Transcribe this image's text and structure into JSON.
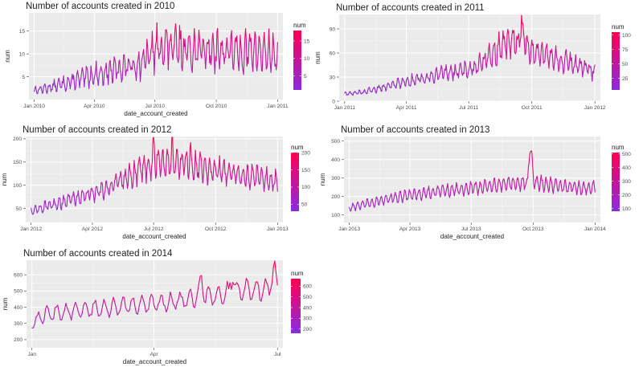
{
  "chart_data": [
    {
      "type": "line",
      "title": "Number of accounts created in 2010",
      "xlabel": "date_account_created",
      "ylabel": "num",
      "legend_title": "num",
      "x_ticks": [
        "Jan 2010",
        "Apr 2010",
        "Jul 2010",
        "Oct 2010",
        "Jan 2011"
      ],
      "x_tick_pos": [
        0,
        90,
        181,
        273,
        365
      ],
      "x_domain": [
        -8,
        373
      ],
      "y_ticks": [
        5,
        10,
        15
      ],
      "ylim": [
        0,
        19
      ],
      "legend_ticks": [
        5,
        10,
        15
      ],
      "color_range": [
        1,
        18
      ],
      "grid": true,
      "legend_position": "right",
      "gradient_colors": [
        "#8a2be2",
        "#ff0050"
      ],
      "series": [
        {
          "x": [
            0,
            15,
            30,
            45,
            60,
            75,
            90,
            105,
            120,
            135,
            150,
            165,
            180,
            195,
            210,
            225,
            240,
            255,
            270,
            285,
            300,
            315,
            330,
            345,
            360
          ],
          "y": [
            2.0,
            2.4,
            2.9,
            3.5,
            4.1,
            4.8,
            5.4,
            5.9,
            6.4,
            7.1,
            7.5,
            8.4,
            10.8,
            11.8,
            11.2,
            11.1,
            11.0,
            10.8,
            10.9,
            10.6,
            10.5,
            10.4,
            10.6,
            10.2,
            10.0
          ]
        }
      ]
    },
    {
      "type": "line",
      "title": "Number of accounts created in 2011",
      "xlabel": "",
      "ylabel": "num",
      "legend_title": "num",
      "x_ticks": [
        "Jan 2011",
        "Apr 2011",
        "Jul 2011",
        "Oct 2011",
        "Jan 2012"
      ],
      "x_tick_pos": [
        0,
        90,
        181,
        273,
        365
      ],
      "x_domain": [
        -8,
        373
      ],
      "y_ticks": [
        0,
        30,
        60,
        90
      ],
      "ylim": [
        0,
        108
      ],
      "legend_ticks": [
        25,
        50,
        75,
        100
      ],
      "color_range": [
        5,
        105
      ],
      "grid": true,
      "legend_position": "right",
      "gradient_colors": [
        "#8a2be2",
        "#ff0050"
      ],
      "series": [
        {
          "x": [
            0,
            15,
            30,
            45,
            60,
            75,
            90,
            105,
            120,
            135,
            150,
            165,
            180,
            195,
            210,
            225,
            240,
            255,
            270,
            285,
            300,
            315,
            330,
            345,
            360
          ],
          "y": [
            9.0,
            10.1,
            11.8,
            15.0,
            18.0,
            21.8,
            25.0,
            27.5,
            30.0,
            33.0,
            35.1,
            37.2,
            39.1,
            45.0,
            54.9,
            64.8,
            74.7,
            72.0,
            64.8,
            59.6,
            55.2,
            50.5,
            47.2,
            43.9,
            38.0
          ]
        }
      ]
    },
    {
      "type": "line",
      "title": "Number of accounts created in 2012",
      "xlabel": "date_account_created",
      "ylabel": "num",
      "legend_title": "num",
      "x_ticks": [
        "Jan 2012",
        "Apr 2012",
        "Jul 2012",
        "Oct 2012",
        "Jan 2013"
      ],
      "x_tick_pos": [
        0,
        91,
        182,
        274,
        366
      ],
      "x_domain": [
        -8,
        374
      ],
      "y_ticks": [
        50,
        100,
        150,
        200
      ],
      "ylim": [
        20,
        205
      ],
      "legend_ticks": [
        50,
        100,
        150,
        200
      ],
      "color_range": [
        30,
        200
      ],
      "grid": true,
      "legend_position": "right",
      "gradient_colors": [
        "#8a2be2",
        "#ff0050"
      ],
      "series": [
        {
          "x": [
            0,
            15,
            30,
            45,
            60,
            75,
            90,
            105,
            120,
            135,
            150,
            165,
            180,
            195,
            210,
            225,
            240,
            255,
            270,
            285,
            300,
            315,
            330,
            345,
            360
          ],
          "y": [
            45.0,
            51.2,
            57.4,
            63.8,
            70.1,
            76.3,
            82.6,
            90.1,
            98.8,
            109.1,
            121.4,
            133.8,
            146.2,
            150.0,
            148.2,
            145.1,
            141.5,
            138.0,
            134.7,
            130.2,
            126.3,
            121.5,
            118.2,
            113.9,
            108.0
          ]
        }
      ]
    },
    {
      "type": "line",
      "title": "Number of accounts created in 2013",
      "xlabel": "date_account_created",
      "ylabel": "num",
      "legend_title": "num",
      "x_ticks": [
        "Jan 2013",
        "Apr 2013",
        "Jul 2013",
        "Oct 2013",
        "Jan 2014"
      ],
      "x_tick_pos": [
        0,
        90,
        181,
        273,
        365
      ],
      "x_domain": [
        -8,
        373
      ],
      "y_ticks": [
        100,
        200,
        300,
        400,
        500
      ],
      "ylim": [
        60,
        525
      ],
      "legend_ticks": [
        100,
        200,
        300,
        400,
        500
      ],
      "color_range": [
        80,
        510
      ],
      "grid": true,
      "legend_position": "right",
      "gradient_colors": [
        "#8a2be2",
        "#ff0050"
      ],
      "series": [
        {
          "x": [
            0,
            15,
            30,
            45,
            60,
            75,
            90,
            105,
            120,
            135,
            150,
            165,
            180,
            195,
            210,
            225,
            240,
            255,
            270,
            285,
            300,
            315,
            330,
            345,
            360
          ],
          "y": [
            140.0,
            152.0,
            164.0,
            176.0,
            188.0,
            199.0,
            208.0,
            216.0,
            223.0,
            229.0,
            235.0,
            241.0,
            247.0,
            252.0,
            258.0,
            263.0,
            268.0,
            275.0,
            279.0,
            271.0,
            264.0,
            257.0,
            250.0,
            243.0,
            250.0
          ]
        }
      ]
    },
    {
      "type": "line",
      "title": "Number of accounts created in 2014",
      "xlabel": "date_account_created",
      "ylabel": "num",
      "legend_title": "num",
      "x_ticks": [
        "Jan",
        "Apr",
        "Jul"
      ],
      "x_tick_pos": [
        0,
        90,
        181
      ],
      "x_domain": [
        -4,
        185
      ],
      "y_ticks": [
        200,
        300,
        400,
        500,
        600
      ],
      "ylim": [
        150,
        690
      ],
      "legend_ticks": [
        200,
        300,
        400,
        500,
        600
      ],
      "color_range": [
        160,
        670
      ],
      "grid": true,
      "legend_position": "right",
      "gradient_colors": [
        "#8a2be2",
        "#ff0050"
      ],
      "series": [
        {
          "x": [
            0,
            10,
            20,
            30,
            40,
            50,
            60,
            70,
            80,
            90,
            100,
            110,
            120,
            130,
            140,
            150,
            160,
            170,
            180
          ],
          "y": [
            300.0,
            360.0,
            368.0,
            376.0,
            384.0,
            392.0,
            400.0,
            408.0,
            416.0,
            424.0,
            432.0,
            440.0,
            455.0,
            470.0,
            480.0,
            492.0,
            505.0,
            515.0,
            525.0
          ]
        }
      ]
    }
  ]
}
